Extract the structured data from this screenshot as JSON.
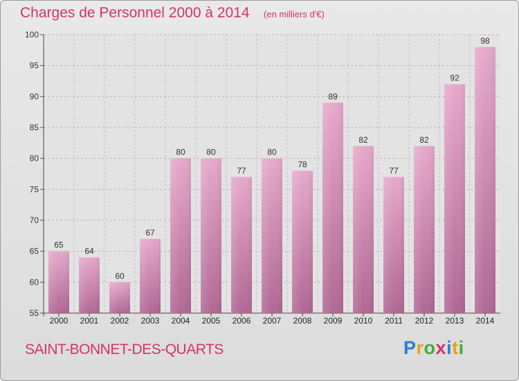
{
  "header": {
    "title": "Charges de Personnel 2000 à 2014",
    "subtitle": "(en milliers d'€)"
  },
  "footer": {
    "place": "SAINT-BONNET-DES-QUARTS",
    "logo_text": "Proxiti",
    "logo_letters": [
      "P",
      "r",
      "o",
      "x",
      "i",
      "t",
      "i"
    ]
  },
  "colors": {
    "title": "#d0336f",
    "bar_top": "#e6a9cb",
    "bar_bottom": "#b06893",
    "plot_bg": "#e3e3e3"
  },
  "chart_data": {
    "type": "bar",
    "categories": [
      "2000",
      "2001",
      "2002",
      "2003",
      "2004",
      "2005",
      "2006",
      "2007",
      "2008",
      "2009",
      "2010",
      "2011",
      "2012",
      "2013",
      "2014"
    ],
    "values": [
      65,
      64,
      60,
      67,
      80,
      80,
      77,
      80,
      78,
      89,
      82,
      77,
      82,
      92,
      98
    ],
    "ylim": [
      55,
      100
    ],
    "yticks": [
      55,
      60,
      65,
      70,
      75,
      80,
      85,
      90,
      95,
      100
    ],
    "grid": "horizontal-dashed"
  }
}
